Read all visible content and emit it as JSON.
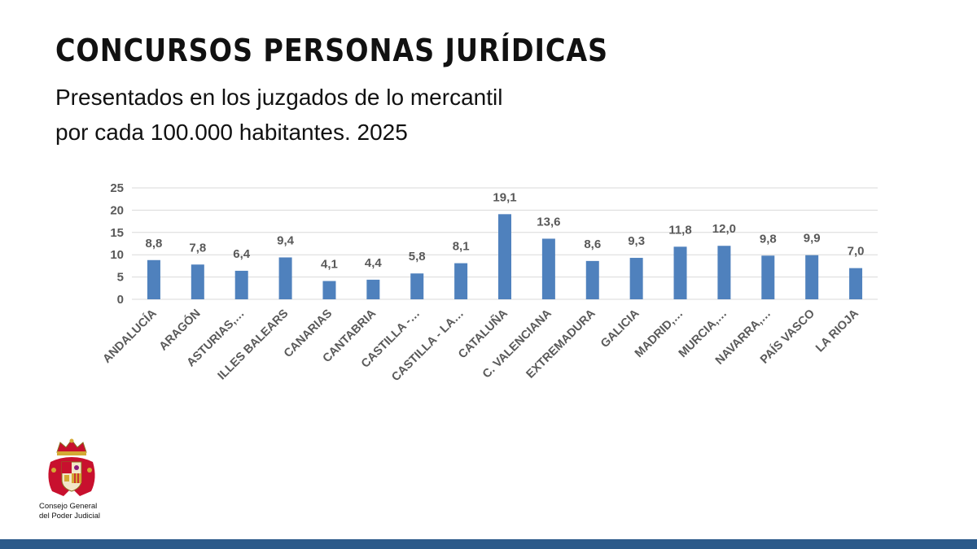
{
  "header": {
    "title": "CONCURSOS PERSONAS JURÍDICAS",
    "subtitle_line1": "Presentados en los juzgados de lo mercantil",
    "subtitle_line2": "por cada 100.000 habitantes. 2025"
  },
  "logo": {
    "line1": "Consejo General",
    "line2": "del Poder Judicial"
  },
  "colors": {
    "bar": "#4f81bd",
    "bottom_bar": "#2b5a8a",
    "grid": "#d9d9d9",
    "text": "#595959"
  },
  "chart_data": {
    "type": "bar",
    "categories": [
      "ANDALUCÍA",
      "ARAGÓN",
      "ASTURIAS,…",
      "ILLES BALEARS",
      "CANARIAS",
      "CANTABRIA",
      "CASTILLA -…",
      "CASTILLA - LA…",
      "CATALUÑA",
      "C. VALENCIANA",
      "EXTREMADURA",
      "GALICIA",
      "MADRID,…",
      "MURCIA,…",
      "NAVARRA,…",
      "PAÍS VASCO",
      "LA RIOJA"
    ],
    "values": [
      8.8,
      7.8,
      6.4,
      9.4,
      4.1,
      4.4,
      5.8,
      8.1,
      19.1,
      13.6,
      8.6,
      9.3,
      11.8,
      12.0,
      9.8,
      9.9,
      7.0
    ],
    "value_labels": [
      "8,8",
      "7,8",
      "6,4",
      "9,4",
      "4,1",
      "4,4",
      "5,8",
      "8,1",
      "19,1",
      "13,6",
      "8,6",
      "9,3",
      "11,8",
      "12,0",
      "9,8",
      "9,9",
      "7,0"
    ],
    "yticks": [
      "0",
      "5",
      "10",
      "15",
      "20",
      "25"
    ],
    "ylim": [
      0,
      25
    ],
    "grid": true
  }
}
